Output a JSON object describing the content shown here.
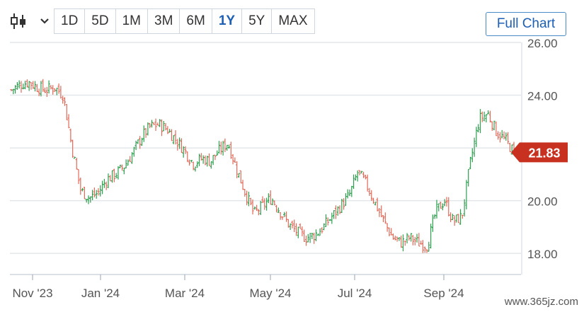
{
  "toolbar": {
    "chart_type_icon": "candlestick-icon",
    "dropdown_icon": "chevron-down-icon",
    "ranges": [
      "1D",
      "5D",
      "1M",
      "3M",
      "6M",
      "1Y",
      "5Y",
      "MAX"
    ],
    "active_range": "1Y"
  },
  "full_chart_label": "Full Chart",
  "watermark": "www.365jz.com",
  "colors": {
    "up": "#2e9e4f",
    "down": "#e06a5a",
    "price_badge": "#c8311f",
    "grid": "#e3e7ea"
  },
  "chart_data": {
    "type": "candlestick",
    "x_tick_labels": [
      "Nov '23",
      "Jan '24",
      "Mar '24",
      "May '24",
      "Jul '24",
      "Sep '24"
    ],
    "y_tick_labels": [
      "26.00",
      "24.00",
      "22.00",
      "20.00",
      "18.00"
    ],
    "y_ticks": [
      26,
      24,
      22,
      20,
      18
    ],
    "ylim": [
      17.2,
      26.0
    ],
    "last_price": 21.83,
    "last_price_label": "21.83",
    "grid": true,
    "weekly_close_series": [
      24.2,
      24.4,
      24.5,
      24.3,
      24.2,
      24.3,
      24.0,
      22.0,
      20.4,
      20.1,
      20.3,
      20.8,
      21.0,
      21.3,
      21.8,
      22.4,
      22.8,
      22.9,
      22.7,
      22.3,
      21.9,
      21.4,
      21.6,
      21.5,
      21.9,
      22.2,
      21.2,
      20.3,
      19.5,
      19.8,
      20.1,
      19.6,
      19.1,
      18.8,
      18.6,
      18.7,
      19.0,
      19.4,
      19.8,
      20.2,
      21.1,
      20.6,
      19.9,
      19.2,
      18.6,
      18.4,
      18.6,
      18.4,
      18.3,
      19.6,
      20.0,
      19.2,
      19.4,
      21.5,
      23.1,
      23.3,
      22.6,
      22.3,
      21.83
    ]
  }
}
